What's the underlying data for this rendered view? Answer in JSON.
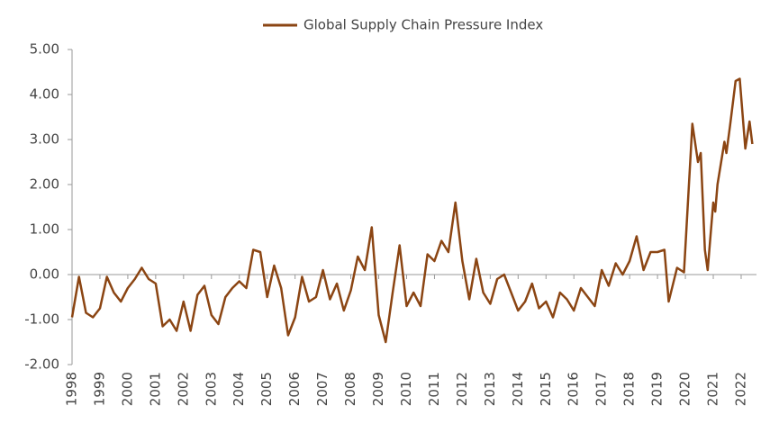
{
  "chart_data": {
    "type": "line",
    "series": [
      {
        "name": "Global Supply Chain Pressure Index",
        "color": "#8b4513",
        "x": [
          1998,
          1998.25,
          1998.5,
          1998.75,
          1999,
          1999.25,
          1999.5,
          1999.75,
          2000,
          2000.25,
          2000.5,
          2000.75,
          2001,
          2001.25,
          2001.5,
          2001.75,
          2002,
          2002.25,
          2002.5,
          2002.75,
          2003,
          2003.25,
          2003.5,
          2003.75,
          2004,
          2004.25,
          2004.5,
          2004.75,
          2005,
          2005.25,
          2005.5,
          2005.75,
          2006,
          2006.25,
          2006.5,
          2006.75,
          2007,
          2007.25,
          2007.5,
          2007.75,
          2008,
          2008.25,
          2008.5,
          2008.75,
          2009,
          2009.25,
          2009.5,
          2009.75,
          2010,
          2010.25,
          2010.5,
          2010.75,
          2011,
          2011.25,
          2011.5,
          2011.75,
          2012,
          2012.25,
          2012.5,
          2012.75,
          2013,
          2013.25,
          2013.5,
          2013.75,
          2014,
          2014.25,
          2014.5,
          2014.75,
          2015,
          2015.25,
          2015.5,
          2015.75,
          2016,
          2016.25,
          2016.5,
          2016.75,
          2017,
          2017.25,
          2017.5,
          2017.75,
          2018,
          2018.25,
          2018.5,
          2018.75,
          2019,
          2019.25,
          2019.4,
          2019.7,
          2019.95,
          2020.25,
          2020.45,
          2020.55,
          2020.7,
          2020.8,
          2021,
          2021.07,
          2021.15,
          2021.4,
          2021.47,
          2021.6,
          2021.8,
          2021.95,
          2022.15,
          2022.3,
          2022.4
        ],
        "values": [
          -0.95,
          -0.05,
          -0.85,
          -0.95,
          -0.75,
          -0.05,
          -0.4,
          -0.6,
          -0.3,
          -0.1,
          0.15,
          -0.1,
          -0.2,
          -1.15,
          -1.0,
          -1.25,
          -0.6,
          -1.25,
          -0.45,
          -0.25,
          -0.9,
          -1.1,
          -0.5,
          -0.3,
          -0.15,
          -0.3,
          0.55,
          0.5,
          -0.5,
          0.2,
          -0.3,
          -1.35,
          -0.95,
          -0.05,
          -0.6,
          -0.5,
          0.1,
          -0.55,
          -0.2,
          -0.8,
          -0.35,
          0.4,
          0.1,
          1.05,
          -0.9,
          -1.5,
          -0.4,
          0.65,
          -0.7,
          -0.4,
          -0.7,
          0.45,
          0.3,
          0.75,
          0.5,
          1.6,
          0.3,
          -0.55,
          0.35,
          -0.4,
          -0.65,
          -0.1,
          0.0,
          -0.4,
          -0.8,
          -0.6,
          -0.2,
          -0.75,
          -0.6,
          -0.95,
          -0.4,
          -0.55,
          -0.8,
          -0.3,
          -0.5,
          -0.7,
          0.1,
          -0.25,
          0.25,
          0.0,
          0.3,
          0.85,
          0.1,
          0.5,
          0.5,
          0.55,
          -0.6,
          0.15,
          0.05,
          3.35,
          2.5,
          2.7,
          0.55,
          0.1,
          1.6,
          1.4,
          2.0,
          2.95,
          2.7,
          3.3,
          4.3,
          4.35,
          2.8,
          3.4,
          2.9
        ]
      }
    ],
    "xlim": [
      1998,
      2022.55
    ],
    "xticks": [
      1998,
      1999,
      2000,
      2001,
      2002,
      2003,
      2004,
      2005,
      2006,
      2007,
      2008,
      2009,
      2010,
      2011,
      2012,
      2013,
      2014,
      2015,
      2016,
      2017,
      2018,
      2019,
      2020,
      2021,
      2022
    ],
    "ylim": [
      -2,
      5
    ],
    "yticks": [
      {
        "value": -2,
        "label": "-2.00"
      },
      {
        "value": -1,
        "label": "-1.00"
      },
      {
        "value": 0,
        "label": "0.00"
      },
      {
        "value": 1,
        "label": "1.00"
      },
      {
        "value": 2,
        "label": "2.00"
      },
      {
        "value": 3,
        "label": "3.00"
      },
      {
        "value": 4,
        "label": "4.00"
      },
      {
        "value": 5,
        "label": "5.00"
      }
    ],
    "legend": "top"
  }
}
